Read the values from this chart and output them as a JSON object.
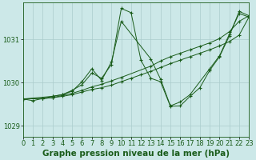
{
  "background_color": "#cce8e8",
  "grid_color": "#aacccc",
  "line_color": "#1a5c1a",
  "marker_color": "#1a5c1a",
  "title": "Graphe pression niveau de la mer (hPa)",
  "xlim": [
    0,
    23
  ],
  "ylim": [
    1028.75,
    1031.85
  ],
  "yticks": [
    1029,
    1030,
    1031
  ],
  "xticks": [
    0,
    1,
    2,
    3,
    4,
    5,
    6,
    7,
    8,
    9,
    10,
    11,
    12,
    13,
    14,
    15,
    16,
    17,
    18,
    19,
    20,
    21,
    22,
    23
  ],
  "series": [
    {
      "x": [
        0,
        1,
        2,
        3,
        4,
        5,
        6,
        7,
        8,
        9,
        10,
        11,
        12,
        13,
        14,
        15,
        16,
        17,
        18,
        19,
        20,
        21,
        22,
        23
      ],
      "y": [
        1029.62,
        1029.58,
        1029.63,
        1029.65,
        1029.68,
        1029.72,
        1029.78,
        1029.84,
        1029.88,
        1029.94,
        1030.02,
        1030.1,
        1030.18,
        1030.26,
        1030.35,
        1030.44,
        1030.52,
        1030.6,
        1030.68,
        1030.76,
        1030.85,
        1030.95,
        1031.1,
        1031.52
      ]
    },
    {
      "x": [
        0,
        2,
        3,
        4,
        5,
        6,
        7,
        8,
        9,
        10,
        13,
        14,
        15,
        16,
        17,
        18,
        19,
        20,
        21,
        22,
        23
      ],
      "y": [
        1029.62,
        1029.63,
        1029.65,
        1029.7,
        1029.75,
        1029.82,
        1029.9,
        1029.96,
        1030.04,
        1030.12,
        1030.38,
        1030.5,
        1030.6,
        1030.68,
        1030.76,
        1030.84,
        1030.92,
        1031.02,
        1031.18,
        1031.42,
        1031.55
      ]
    },
    {
      "x": [
        0,
        2,
        3,
        4,
        5,
        6,
        7,
        8,
        9,
        10,
        11,
        12,
        13,
        14,
        15,
        16,
        17,
        18,
        19,
        20,
        21,
        22,
        23
      ],
      "y": [
        1029.62,
        1029.63,
        1029.68,
        1029.72,
        1029.82,
        1029.95,
        1030.22,
        1030.1,
        1030.42,
        1031.72,
        1031.62,
        1030.52,
        1030.1,
        1030.02,
        1029.45,
        1029.46,
        1029.68,
        1029.88,
        1030.28,
        1030.6,
        1031.08,
        1031.65,
        1031.55
      ]
    },
    {
      "x": [
        0,
        3,
        4,
        5,
        6,
        7,
        8,
        9,
        10,
        13,
        14,
        15,
        16,
        17,
        19,
        20,
        21,
        22,
        23
      ],
      "y": [
        1029.62,
        1029.68,
        1029.72,
        1029.8,
        1030.02,
        1030.32,
        1030.05,
        1030.48,
        1031.42,
        1030.55,
        1030.08,
        1029.46,
        1029.55,
        1029.72,
        1030.32,
        1030.62,
        1031.12,
        1031.6,
        1031.52
      ]
    }
  ],
  "title_fontsize": 7.5,
  "tick_fontsize": 6,
  "title_color": "#1a5c1a"
}
